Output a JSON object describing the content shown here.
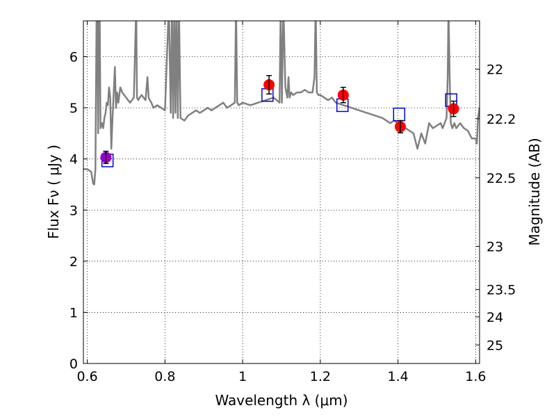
{
  "chart_data": {
    "type": "scatter",
    "title": "",
    "xlabel": "Wavelength  λ (μm)",
    "ylabel": "Flux  Fν  ( μJy )",
    "y2label": "Magnitude (AB)",
    "xlim": [
      0.59,
      1.61
    ],
    "ylim": [
      0,
      6.7
    ],
    "xticks": [
      0.6,
      0.8,
      1.0,
      1.2,
      1.4,
      1.6
    ],
    "xtick_labels": [
      "0.6",
      "0.8",
      "1",
      "1.2",
      "1.4",
      "1.6"
    ],
    "yticks": [
      0,
      1,
      2,
      3,
      4,
      5,
      6
    ],
    "ytick_labels": [
      "0",
      "1",
      "2",
      "3",
      "4",
      "5",
      "6"
    ],
    "y2ticks": [
      {
        "label": "22",
        "value": 22.0
      },
      {
        "label": "22.2",
        "value": 22.2
      },
      {
        "label": "22.5",
        "value": 22.5
      },
      {
        "label": "23",
        "value": 23.0
      },
      {
        "label": "23.5",
        "value": 23.5
      },
      {
        "label": "24",
        "value": 24.0
      },
      {
        "label": "25",
        "value": 25.0
      }
    ],
    "grid": true,
    "colors": {
      "model": "#808080",
      "observed": "#ff0000",
      "optical": "#9900cc",
      "synthetic": "#0000cc",
      "errorbar": "#000000"
    },
    "model_spectrum": {
      "x": [
        0.59,
        0.6,
        0.61,
        0.615,
        0.618,
        0.621,
        0.625,
        0.628,
        0.631,
        0.634,
        0.638,
        0.641,
        0.644,
        0.647,
        0.65,
        0.653,
        0.656,
        0.659,
        0.662,
        0.665,
        0.668,
        0.671,
        0.674,
        0.677,
        0.68,
        0.685,
        0.69,
        0.695,
        0.7,
        0.71,
        0.72,
        0.726,
        0.728,
        0.731,
        0.735,
        0.74,
        0.75,
        0.755,
        0.758,
        0.761,
        0.765,
        0.77,
        0.78,
        0.79,
        0.8,
        0.81,
        0.815,
        0.818,
        0.821,
        0.824,
        0.827,
        0.83,
        0.833,
        0.836,
        0.84,
        0.85,
        0.86,
        0.87,
        0.88,
        0.89,
        0.9,
        0.91,
        0.92,
        0.93,
        0.94,
        0.95,
        0.96,
        0.97,
        0.98,
        0.983,
        0.986,
        0.99,
        1.0,
        1.02,
        1.04,
        1.06,
        1.08,
        1.095,
        1.098,
        1.101,
        1.105,
        1.11,
        1.115,
        1.118,
        1.121,
        1.125,
        1.13,
        1.14,
        1.15,
        1.16,
        1.17,
        1.18,
        1.185,
        1.188,
        1.191,
        1.195,
        1.2,
        1.21,
        1.22,
        1.23,
        1.24,
        1.26,
        1.28,
        1.3,
        1.32,
        1.34,
        1.36,
        1.38,
        1.39,
        1.4,
        1.42,
        1.44,
        1.45,
        1.46,
        1.47,
        1.48,
        1.49,
        1.5,
        1.51,
        1.515,
        1.52,
        1.525,
        1.528,
        1.53,
        1.533,
        1.536,
        1.54,
        1.545,
        1.55,
        1.56,
        1.57,
        1.58,
        1.59,
        1.6,
        1.603,
        1.606,
        1.61
      ],
      "y": [
        3.8,
        3.8,
        3.75,
        3.52,
        3.5,
        3.8,
        8.0,
        4.5,
        8.0,
        4.6,
        4.7,
        4.6,
        4.8,
        4.9,
        5.1,
        5.05,
        5.4,
        5.2,
        4.2,
        4.8,
        5.3,
        5.8,
        5.0,
        5.3,
        5.1,
        5.4,
        5.3,
        5.25,
        5.2,
        5.1,
        5.2,
        7.0,
        5.2,
        5.15,
        5.2,
        5.25,
        5.15,
        5.6,
        5.2,
        5.15,
        5.1,
        5.0,
        5.05,
        5.0,
        4.95,
        7.0,
        4.9,
        7.0,
        4.8,
        7.0,
        4.9,
        7.0,
        4.8,
        7.0,
        4.8,
        4.75,
        4.85,
        4.9,
        4.95,
        4.9,
        4.95,
        5.0,
        4.95,
        5.0,
        5.05,
        5.1,
        5.0,
        5.05,
        5.1,
        7.0,
        5.1,
        5.05,
        5.1,
        5.05,
        5.1,
        5.15,
        5.2,
        5.1,
        7.0,
        5.1,
        7.0,
        5.4,
        5.2,
        5.6,
        5.2,
        5.3,
        5.25,
        5.3,
        5.3,
        5.35,
        5.3,
        5.3,
        5.6,
        7.0,
        5.3,
        5.25,
        5.25,
        5.2,
        5.15,
        5.2,
        5.1,
        5.05,
        5.0,
        4.95,
        4.9,
        4.85,
        4.8,
        4.7,
        4.75,
        4.7,
        4.6,
        4.5,
        4.2,
        4.5,
        4.3,
        4.7,
        4.6,
        4.65,
        4.7,
        4.6,
        4.7,
        4.8,
        5.6,
        7.0,
        5.6,
        4.7,
        4.6,
        4.7,
        4.6,
        4.7,
        4.6,
        4.55,
        4.4,
        4.4,
        4.3,
        4.8,
        5.0
      ]
    },
    "observed": {
      "x": [
        1.068,
        1.259,
        1.406,
        1.543
      ],
      "y": [
        5.45,
        5.25,
        4.63,
        4.98
      ],
      "yerr": [
        0.18,
        0.15,
        0.12,
        0.15
      ]
    },
    "optical": {
      "x": [
        0.648
      ],
      "y": [
        4.03
      ],
      "yerr": [
        0.12
      ]
    },
    "synthetic": {
      "x": [
        0.652,
        1.064,
        1.257,
        1.403,
        1.537
      ],
      "y": [
        3.97,
        5.25,
        5.05,
        4.87,
        5.15
      ]
    }
  }
}
